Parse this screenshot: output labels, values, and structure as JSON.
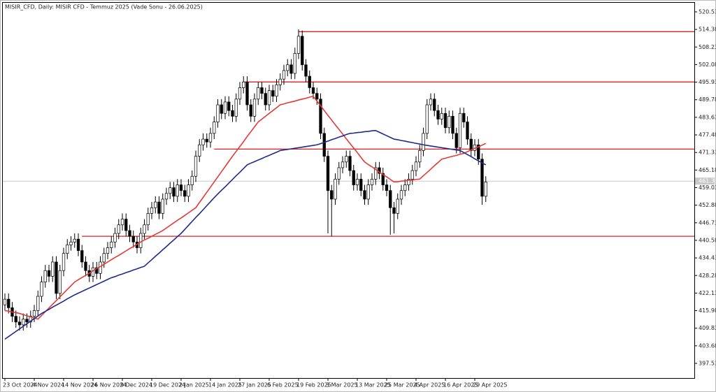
{
  "chart_data": {
    "type": "candlestick",
    "title": "MISIR_CFD, Daily:  MISIR CFD - Temmuz 2025 (Vade Sonu - 26.06.2025)",
    "categories": [
      "23 Oct 2024",
      null,
      null,
      null,
      null,
      null,
      null,
      null,
      "4 Nov 2024",
      null,
      null,
      null,
      null,
      null,
      null,
      null,
      "14 Nov 2024",
      null,
      null,
      null,
      null,
      null,
      null,
      null,
      "26 Nov 2024",
      null,
      null,
      null,
      null,
      null,
      null,
      null,
      "9 Dec 2024",
      null,
      null,
      null,
      null,
      null,
      null,
      null,
      "19 Dec 2024",
      null,
      null,
      null,
      null,
      null,
      null,
      null,
      "2 Jan 2025",
      null,
      null,
      null,
      null,
      null,
      null,
      null,
      "14 Jan 2025",
      null,
      null,
      null,
      null,
      null,
      null,
      null,
      "27 Jan 2025",
      null,
      null,
      null,
      null,
      null,
      null,
      null,
      "6 Feb 2025",
      null,
      null,
      null,
      null,
      null,
      null,
      null,
      "19 Feb 2025",
      null,
      null,
      null,
      null,
      null,
      null,
      null,
      "3 Mar 2025",
      null,
      null,
      null,
      null,
      null,
      null,
      null,
      "13 Mar 2025",
      null,
      null,
      null,
      null,
      null,
      null,
      null,
      "25 Mar 2025",
      null,
      null,
      null,
      null,
      null,
      null,
      null,
      "4 Apr 2025",
      null,
      null,
      null,
      null,
      null,
      null,
      null,
      "16 Apr 2025",
      null,
      null,
      null,
      null,
      null,
      null,
      null,
      "29 Apr 2025",
      null,
      null,
      null
    ],
    "open": [
      418,
      420,
      417,
      414,
      412,
      411,
      413,
      412,
      414,
      416,
      421,
      426,
      430,
      428,
      433,
      422,
      430,
      436,
      439,
      440,
      441,
      437,
      433,
      430,
      428,
      431,
      429,
      433,
      436,
      438,
      440,
      443,
      446,
      448,
      444,
      442,
      440,
      438,
      443,
      446,
      450,
      452,
      454,
      450,
      455,
      457,
      459,
      456,
      460,
      458,
      456,
      460,
      463,
      470,
      474,
      476,
      475,
      478,
      482,
      488,
      485,
      489,
      486,
      484,
      490,
      494,
      496,
      488,
      484,
      490,
      494,
      492,
      488,
      493,
      491,
      495,
      497,
      500,
      502,
      499,
      506,
      512,
      502,
      498,
      494,
      492,
      490,
      478,
      470,
      458,
      455,
      462,
      466,
      468,
      470,
      465,
      460,
      462,
      458,
      455,
      460,
      462,
      466,
      464,
      460,
      458,
      452,
      450,
      455,
      458,
      460,
      462,
      465,
      468,
      472,
      478,
      488,
      490,
      486,
      483,
      485,
      480,
      484,
      478,
      473,
      485,
      482,
      476,
      472,
      474,
      469,
      456
    ],
    "high": [
      422,
      422,
      419,
      416,
      414,
      415,
      415,
      416,
      418,
      423,
      428,
      432,
      432,
      435,
      435,
      432,
      438,
      441,
      442,
      443,
      443,
      439,
      435,
      432,
      433,
      433,
      435,
      438,
      440,
      442,
      445,
      448,
      450,
      450,
      446,
      444,
      442,
      445,
      448,
      452,
      454,
      456,
      456,
      457,
      459,
      461,
      461,
      462,
      462,
      460,
      462,
      465,
      472,
      476,
      478,
      478,
      480,
      484,
      490,
      490,
      491,
      491,
      488,
      492,
      496,
      498,
      498,
      490,
      492,
      496,
      496,
      494,
      495,
      495,
      497,
      499,
      502,
      504,
      504,
      508,
      514.4,
      514,
      504,
      500,
      496,
      494,
      492,
      480,
      472,
      460,
      464,
      468,
      470,
      472,
      472,
      467,
      464,
      464,
      460,
      462,
      464,
      468,
      468,
      466,
      462,
      460,
      454,
      457,
      460,
      462,
      464,
      467,
      470,
      474,
      480,
      490,
      492,
      492,
      488,
      487,
      487,
      486,
      486,
      480,
      487,
      487,
      484,
      478,
      476,
      476,
      471,
      463
    ],
    "low": [
      416,
      415,
      412,
      410,
      409,
      409,
      410,
      410,
      412,
      414,
      419,
      424,
      426,
      426,
      420,
      420,
      428,
      434,
      437,
      438,
      435,
      431,
      428,
      426,
      426,
      427,
      427,
      431,
      434,
      436,
      438,
      441,
      444,
      442,
      440,
      438,
      436,
      436,
      441,
      444,
      448,
      450,
      448,
      448,
      453,
      455,
      454,
      454,
      456,
      454,
      454,
      458,
      461,
      468,
      472,
      473,
      473,
      476,
      480,
      483,
      483,
      484,
      482,
      482,
      488,
      492,
      486,
      482,
      482,
      488,
      490,
      486,
      486,
      489,
      489,
      493,
      495,
      498,
      497,
      497,
      504,
      500,
      496,
      492,
      490,
      488,
      476,
      468,
      443,
      442,
      453,
      460,
      464,
      466,
      463,
      458,
      458,
      456,
      453,
      453,
      458,
      460,
      462,
      458,
      456,
      442.5,
      443,
      448,
      453,
      456,
      458,
      460,
      463,
      466,
      470,
      476,
      486,
      484,
      481,
      481,
      478,
      478,
      476,
      471,
      471,
      480,
      474,
      470,
      470,
      467,
      453,
      454
    ],
    "close": [
      420,
      417,
      414,
      412,
      411,
      413,
      412,
      414,
      416,
      421,
      426,
      430,
      428,
      433,
      422,
      430,
      436,
      439,
      440,
      441,
      437,
      433,
      430,
      428,
      431,
      429,
      433,
      436,
      438,
      440,
      443,
      446,
      448,
      444,
      442,
      440,
      438,
      443,
      446,
      450,
      452,
      454,
      450,
      455,
      457,
      459,
      456,
      460,
      458,
      456,
      460,
      463,
      470,
      474,
      476,
      475,
      478,
      482,
      488,
      485,
      489,
      486,
      484,
      490,
      494,
      496,
      488,
      484,
      490,
      494,
      492,
      488,
      493,
      491,
      495,
      497,
      500,
      502,
      499,
      506,
      512,
      502,
      498,
      494,
      492,
      490,
      478,
      470,
      458,
      455,
      462,
      466,
      468,
      470,
      465,
      460,
      462,
      458,
      455,
      460,
      462,
      466,
      464,
      460,
      458,
      452,
      450,
      455,
      458,
      460,
      462,
      465,
      468,
      472,
      478,
      488,
      490,
      486,
      483,
      485,
      480,
      484,
      478,
      473,
      485,
      482,
      476,
      472,
      474,
      469,
      456,
      461
    ],
    "up_color": "#ffffff",
    "down_color": "#000000",
    "series": [
      {
        "color": "#e53935",
        "values": [
          416,
          415.8,
          415.5,
          415.3,
          415,
          414.6,
          414.2,
          413.8,
          413.4,
          413,
          414.3,
          415.6,
          416.9,
          418.2,
          419.5,
          420.8,
          422.1,
          423.4,
          424.7,
          426,
          426.8,
          427.6,
          428.3,
          429.1,
          429.9,
          430.7,
          431.4,
          432.2,
          433,
          433.8,
          434.6,
          435.3,
          436.1,
          436.9,
          437.7,
          438.4,
          439.2,
          440,
          440.7,
          441.3,
          442,
          442.7,
          443.3,
          444,
          444.9,
          445.8,
          446.7,
          447.6,
          448.4,
          449.3,
          450.2,
          451.1,
          452,
          453.8,
          455.6,
          457.4,
          459.2,
          461,
          462.8,
          464.6,
          466.4,
          468.2,
          470,
          471.7,
          473.4,
          475.1,
          476.9,
          478.6,
          480.3,
          482,
          483,
          484,
          485,
          486,
          487,
          488,
          488.3,
          488.7,
          489,
          489.3,
          489.7,
          490,
          490.3,
          490.7,
          491,
          489.3,
          487.7,
          486,
          484.3,
          482.7,
          481,
          479.4,
          477.8,
          476.1,
          474.5,
          472.9,
          471.3,
          469.6,
          468,
          467.1,
          466.3,
          465.4,
          464.5,
          463.6,
          462.8,
          461.9,
          461,
          461.1,
          461.3,
          461.4,
          461.6,
          461.7,
          461.9,
          462,
          463.2,
          464.3,
          465.5,
          466.7,
          467.8,
          469,
          469.3,
          469.7,
          470,
          470.3,
          470.7,
          471,
          471.6,
          472.2,
          472.8,
          473.3,
          473.9,
          474.5
        ]
      },
      {
        "color": "#1c2a8c",
        "values": [
          406,
          406.9,
          407.8,
          408.7,
          409.6,
          410.5,
          411.4,
          412.3,
          413.2,
          414.1,
          415,
          415.7,
          416.4,
          417.2,
          417.9,
          418.6,
          419.3,
          420.1,
          420.8,
          421.5,
          422.1,
          422.7,
          423.3,
          423.9,
          424.5,
          425.1,
          425.7,
          426.3,
          426.9,
          427.5,
          427.9,
          428.4,
          428.8,
          429.3,
          429.7,
          430.2,
          430.6,
          431.1,
          431.5,
          432.7,
          433.8,
          435,
          436.1,
          437.3,
          438.4,
          439.6,
          440.7,
          441.9,
          443,
          444.4,
          445.8,
          447.2,
          448.6,
          449.9,
          451.3,
          452.7,
          454.1,
          455.5,
          456.8,
          458.1,
          459.3,
          460.6,
          461.9,
          463.2,
          464.4,
          465.7,
          467,
          467.6,
          468.1,
          468.7,
          469.2,
          469.8,
          470.3,
          470.9,
          471.4,
          472,
          472.2,
          472.4,
          472.6,
          472.8,
          473,
          473.2,
          473.4,
          473.6,
          473.8,
          474,
          474.4,
          474.9,
          475.3,
          475.8,
          476.2,
          476.7,
          477.1,
          477.6,
          478,
          478.1,
          478.3,
          478.4,
          478.6,
          478.7,
          478.9,
          479,
          478.4,
          477.8,
          477.2,
          476.6,
          476,
          475.8,
          475.5,
          475.3,
          475,
          474.8,
          474.5,
          474.3,
          474,
          473.8,
          473.6,
          473.4,
          473.2,
          473,
          472.8,
          472.6,
          472.4,
          472.2,
          472,
          471.3,
          470.6,
          469.9,
          469.1,
          468.4,
          467.7,
          467
        ]
      }
    ],
    "levels": [
      {
        "value": 513.6,
        "start": 80
      },
      {
        "value": 496,
        "start": 65
      },
      {
        "value": 472.5,
        "start": 57
      },
      {
        "value": 442,
        "start": 21
      }
    ],
    "level_color": "#e02020",
    "current_price": 461.3,
    "ylim": [
      392.4,
      523.7
    ],
    "yticks": [
      520.53,
      514.38,
      508.23,
      502.08,
      495.93,
      489.78,
      483.63,
      477.48,
      471.33,
      465.18,
      459.03,
      452.88,
      446.73,
      440.58,
      434.43,
      428.28,
      422.13,
      415.98,
      409.83,
      403.68,
      397.53
    ]
  }
}
